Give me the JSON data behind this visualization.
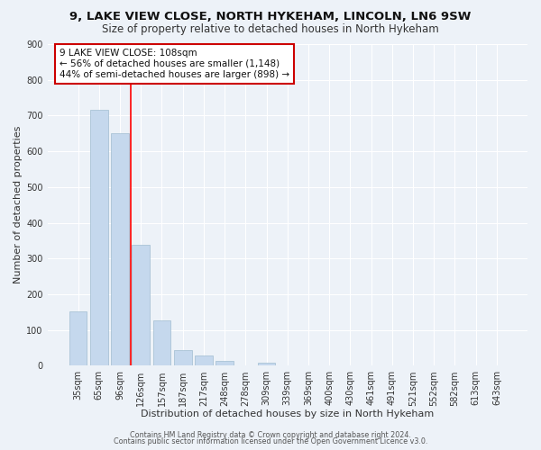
{
  "title": "9, LAKE VIEW CLOSE, NORTH HYKEHAM, LINCOLN, LN6 9SW",
  "subtitle": "Size of property relative to detached houses in North Hykeham",
  "xlabel": "Distribution of detached houses by size in North Hykeham",
  "ylabel": "Number of detached properties",
  "bin_labels": [
    "35sqm",
    "65sqm",
    "96sqm",
    "126sqm",
    "157sqm",
    "187sqm",
    "217sqm",
    "248sqm",
    "278sqm",
    "309sqm",
    "339sqm",
    "369sqm",
    "400sqm",
    "430sqm",
    "461sqm",
    "491sqm",
    "521sqm",
    "552sqm",
    "582sqm",
    "613sqm",
    "643sqm"
  ],
  "bar_values": [
    152,
    715,
    650,
    338,
    128,
    43,
    30,
    13,
    0,
    10,
    0,
    0,
    0,
    0,
    0,
    0,
    0,
    0,
    0,
    0,
    0
  ],
  "bar_color": "#c5d8ed",
  "bar_edge_color": "#a0bcd0",
  "red_line_x": 2.5,
  "ylim": [
    0,
    900
  ],
  "yticks": [
    0,
    100,
    200,
    300,
    400,
    500,
    600,
    700,
    800,
    900
  ],
  "annotation_line1": "9 LAKE VIEW CLOSE: 108sqm",
  "annotation_line2": "← 56% of detached houses are smaller (1,148)",
  "annotation_line3": "44% of semi-detached houses are larger (898) →",
  "box_edge_color": "#cc0000",
  "footer_line1": "Contains HM Land Registry data © Crown copyright and database right 2024.",
  "footer_line2": "Contains public sector information licensed under the Open Government Licence v3.0.",
  "bg_color": "#edf2f8",
  "plot_bg_color": "#edf2f8",
  "grid_color": "#ffffff",
  "title_fontsize": 9.5,
  "subtitle_fontsize": 8.5,
  "axis_label_fontsize": 8,
  "tick_fontsize": 7,
  "annot_fontsize": 7.5,
  "footer_fontsize": 5.8
}
